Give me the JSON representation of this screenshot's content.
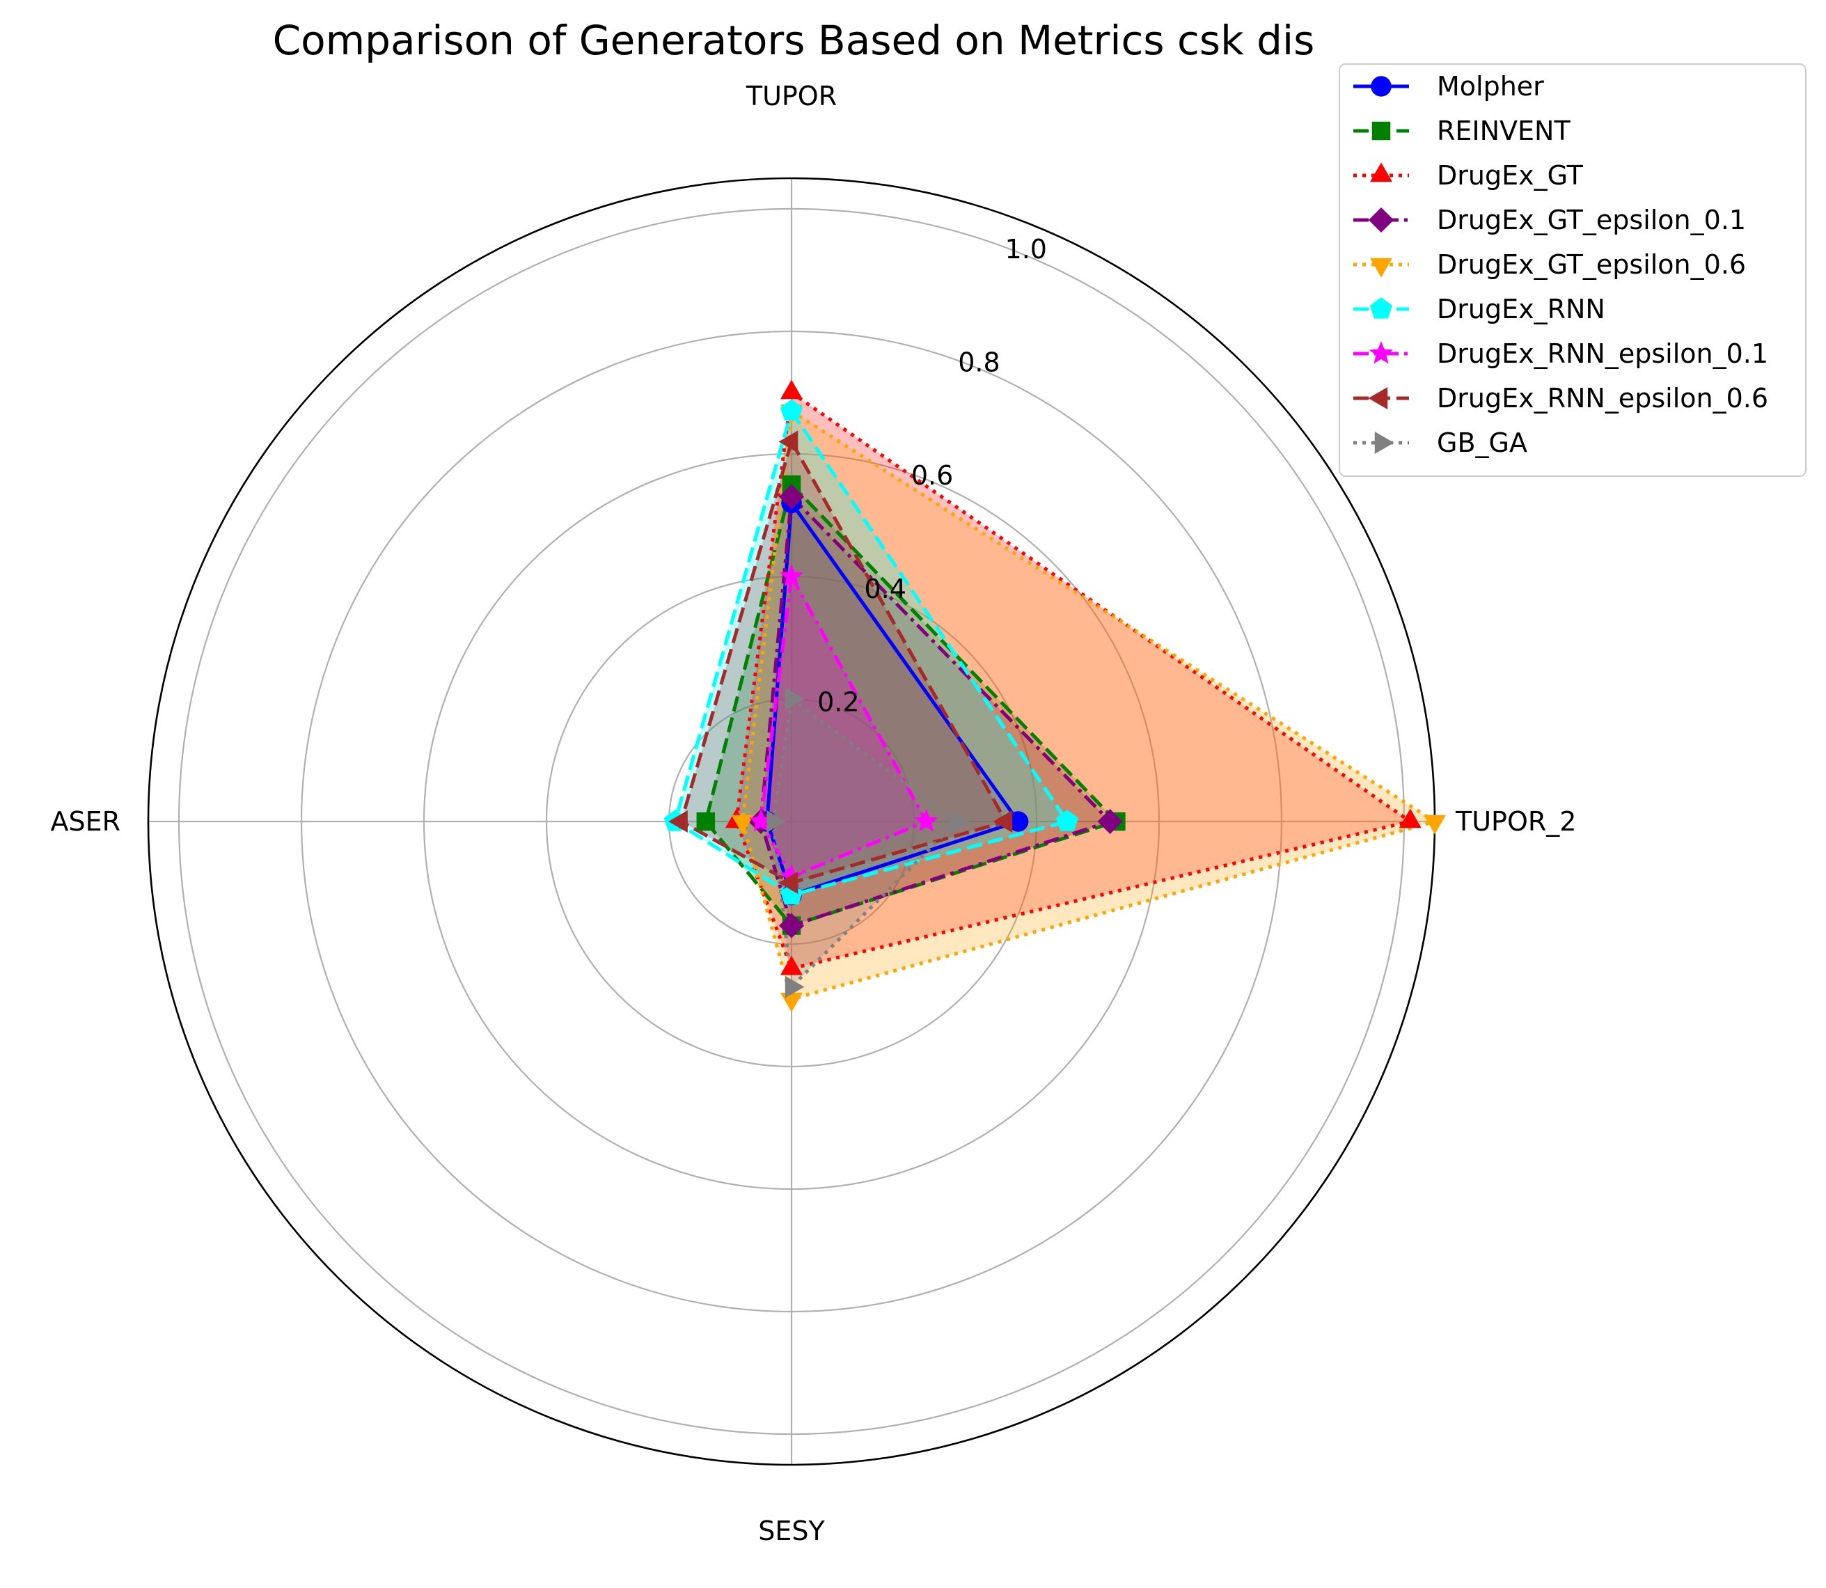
{
  "chart_data": {
    "type": "radar",
    "title": "Comparison of Generators Based on Metrics csk dis",
    "axes": [
      "TUPOR",
      "TUPOR_2",
      "SESY",
      "ASER"
    ],
    "rlim": [
      0,
      1.05
    ],
    "rticks": [
      0.2,
      0.4,
      0.6,
      0.8,
      1.0
    ],
    "rtick_labels": [
      "0.2",
      "0.4",
      "0.6",
      "0.8",
      "1.0"
    ],
    "grid": true,
    "legend_position": "top-right",
    "series": [
      {
        "name": "Molpher",
        "values": [
          0.52,
          0.37,
          0.12,
          0.04
        ],
        "color": "#0000ff",
        "marker": "circle",
        "dash": "solid"
      },
      {
        "name": "REINVENT",
        "values": [
          0.55,
          0.53,
          0.17,
          0.14
        ],
        "color": "#008000",
        "marker": "square",
        "dash": "dashed"
      },
      {
        "name": "DrugEx_GT",
        "values": [
          0.7,
          1.01,
          0.24,
          0.09
        ],
        "color": "#ff0000",
        "marker": "triangle-up",
        "dash": "dotted"
      },
      {
        "name": "DrugEx_GT_epsilon_0.1",
        "values": [
          0.53,
          0.52,
          0.17,
          0.05
        ],
        "color": "#800080",
        "marker": "diamond",
        "dash": "dashdot"
      },
      {
        "name": "DrugEx_GT_epsilon_0.6",
        "values": [
          0.67,
          1.05,
          0.29,
          0.08
        ],
        "color": "#ffa500",
        "marker": "triangle-down",
        "dash": "dotted"
      },
      {
        "name": "DrugEx_RNN",
        "values": [
          0.67,
          0.45,
          0.12,
          0.19
        ],
        "color": "#00ffff",
        "marker": "pentagon",
        "dash": "dashed"
      },
      {
        "name": "DrugEx_RNN_epsilon_0.1",
        "values": [
          0.4,
          0.22,
          0.09,
          0.05
        ],
        "color": "#ff00ff",
        "marker": "star",
        "dash": "dashdot"
      },
      {
        "name": "DrugEx_RNN_epsilon_0.6",
        "values": [
          0.62,
          0.35,
          0.1,
          0.18
        ],
        "color": "#a52a2a",
        "marker": "triangle-left",
        "dash": "dashed"
      },
      {
        "name": "GB_GA",
        "values": [
          0.2,
          0.27,
          0.27,
          0.03
        ],
        "color": "#808080",
        "marker": "triangle-right",
        "dash": "dotted"
      }
    ]
  }
}
